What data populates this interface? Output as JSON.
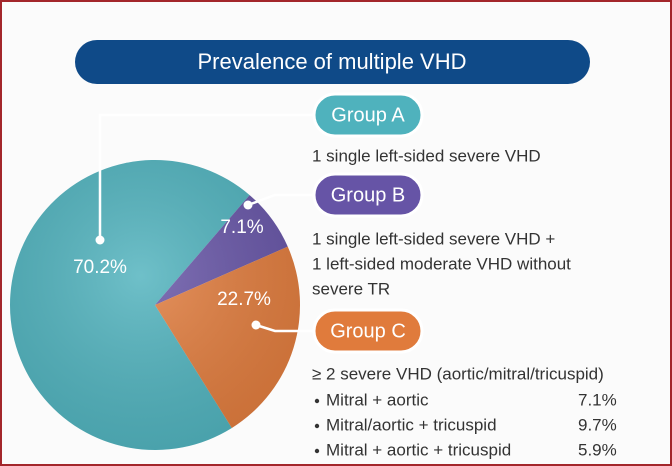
{
  "chart_data": {
    "type": "pie",
    "title": "Prevalence of multiple VHD",
    "categories": [
      "Group A",
      "Group B",
      "Group C"
    ],
    "values": [
      70.2,
      7.1,
      22.7
    ],
    "value_labels": [
      "70.2%",
      "7.1%",
      "22.7%"
    ],
    "colors": [
      "#4fb2bd",
      "#6654a6",
      "#e07b3c"
    ],
    "descriptions": [
      [
        "1 single left-sided severe VHD"
      ],
      [
        "1 single left-sided severe VHD +",
        "1 left-sided moderate VHD without",
        "severe TR"
      ],
      [
        "≥ 2 severe VHD (aortic/mitral/tricuspid)"
      ]
    ],
    "breakdown": {
      "labels": [
        "Mitral + aortic",
        "Mitral/aortic + tricuspid",
        "Mitral + aortic + tricuspid"
      ],
      "values": [
        7.1,
        9.7,
        5.9
      ],
      "value_labels": [
        "7.1%",
        "9.7%",
        "5.9%"
      ]
    }
  }
}
